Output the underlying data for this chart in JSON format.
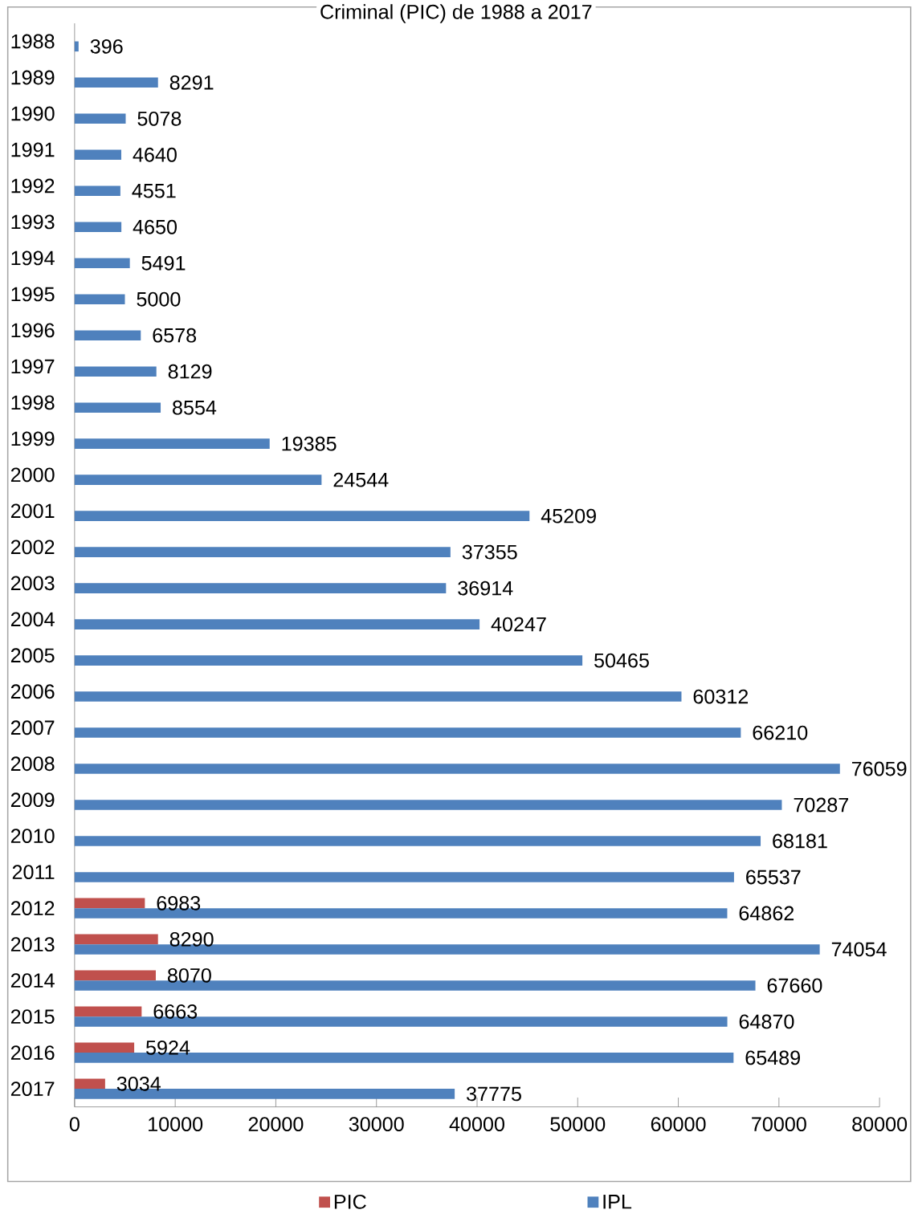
{
  "chart_data": {
    "type": "bar",
    "orientation": "horizontal",
    "title": "Criminal (PIC) de 1988 a 2017",
    "categories": [
      "1988",
      "1989",
      "1990",
      "1991",
      "1992",
      "1993",
      "1994",
      "1995",
      "1996",
      "1997",
      "1998",
      "1999",
      "2000",
      "2001",
      "2002",
      "2003",
      "2004",
      "2005",
      "2006",
      "2007",
      "2008",
      "2009",
      "2010",
      "2011",
      "2012",
      "2013",
      "2014",
      "2015",
      "2016",
      "2017"
    ],
    "series": [
      {
        "name": "PIC",
        "color": "#c0504d",
        "values": [
          null,
          null,
          null,
          null,
          null,
          null,
          null,
          null,
          null,
          null,
          null,
          null,
          null,
          null,
          null,
          null,
          null,
          null,
          null,
          null,
          null,
          null,
          null,
          null,
          6983,
          8290,
          8070,
          6663,
          5924,
          3034
        ]
      },
      {
        "name": "IPL",
        "color": "#4f81bd",
        "values": [
          396,
          8291,
          5078,
          4640,
          4551,
          4650,
          5491,
          5000,
          6578,
          8129,
          8554,
          19385,
          24544,
          45209,
          37355,
          36914,
          40247,
          50465,
          60312,
          66210,
          76059,
          70287,
          68181,
          65537,
          64862,
          74054,
          67660,
          64870,
          65489,
          37775
        ]
      }
    ],
    "xlim": [
      0,
      80000
    ],
    "xticks": [
      0,
      10000,
      20000,
      30000,
      40000,
      50000,
      60000,
      70000,
      80000
    ],
    "data_labels": true,
    "legend": "bottom",
    "grid": false
  }
}
